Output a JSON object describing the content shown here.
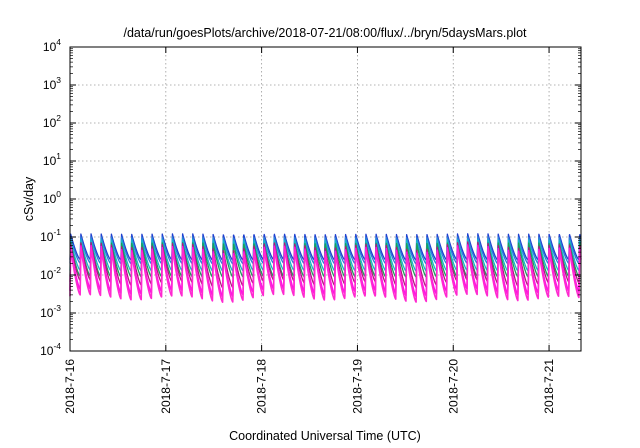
{
  "chart_data": {
    "type": "line",
    "title": "/data/run/goesPlots/archive/2018-07-21/08:00/flux/../bryn/5daysMars.plot",
    "xlabel": "Coordinated Universal Time (UTC)",
    "ylabel": "cSv/day",
    "yscale": "log",
    "ylim": [
      0.0001,
      10000
    ],
    "xlim": [
      "2018-07-16 00:00",
      "2018-07-21 08:00"
    ],
    "grid": true,
    "legend": "none",
    "y_ticks": [
      {
        "base": "10",
        "exp": "-4"
      },
      {
        "base": "10",
        "exp": "-3"
      },
      {
        "base": "10",
        "exp": "-2"
      },
      {
        "base": "10",
        "exp": "-1"
      },
      {
        "base": "10",
        "exp": "0"
      },
      {
        "base": "10",
        "exp": "1"
      },
      {
        "base": "10",
        "exp": "2"
      },
      {
        "base": "10",
        "exp": "3"
      },
      {
        "base": "10",
        "exp": "4"
      }
    ],
    "x_ticks": [
      "2018-7-16",
      "2018-7-17",
      "2018-7-18",
      "2018-7-19",
      "2018-7-20",
      "2018-7-21"
    ],
    "sawtooth_period_hours": 2.55,
    "series": [
      {
        "color": "#1f3fd0",
        "peak": 0.12,
        "trough": 0.025
      },
      {
        "color": "#2a7fd8",
        "peak": 0.1,
        "trough": 0.02
      },
      {
        "color": "#16b6c8",
        "peak": 0.085,
        "trough": 0.013
      },
      {
        "color": "#1aa05a",
        "peak": 0.07,
        "trough": 0.009
      },
      {
        "color": "#b01a7a",
        "peak": 0.06,
        "trough": 0.006
      },
      {
        "color": "#ff10e8",
        "peak": 0.05,
        "trough": 0.0035
      },
      {
        "color": "#ff2ad0",
        "peak": 0.045,
        "trough": 0.0025
      }
    ]
  }
}
